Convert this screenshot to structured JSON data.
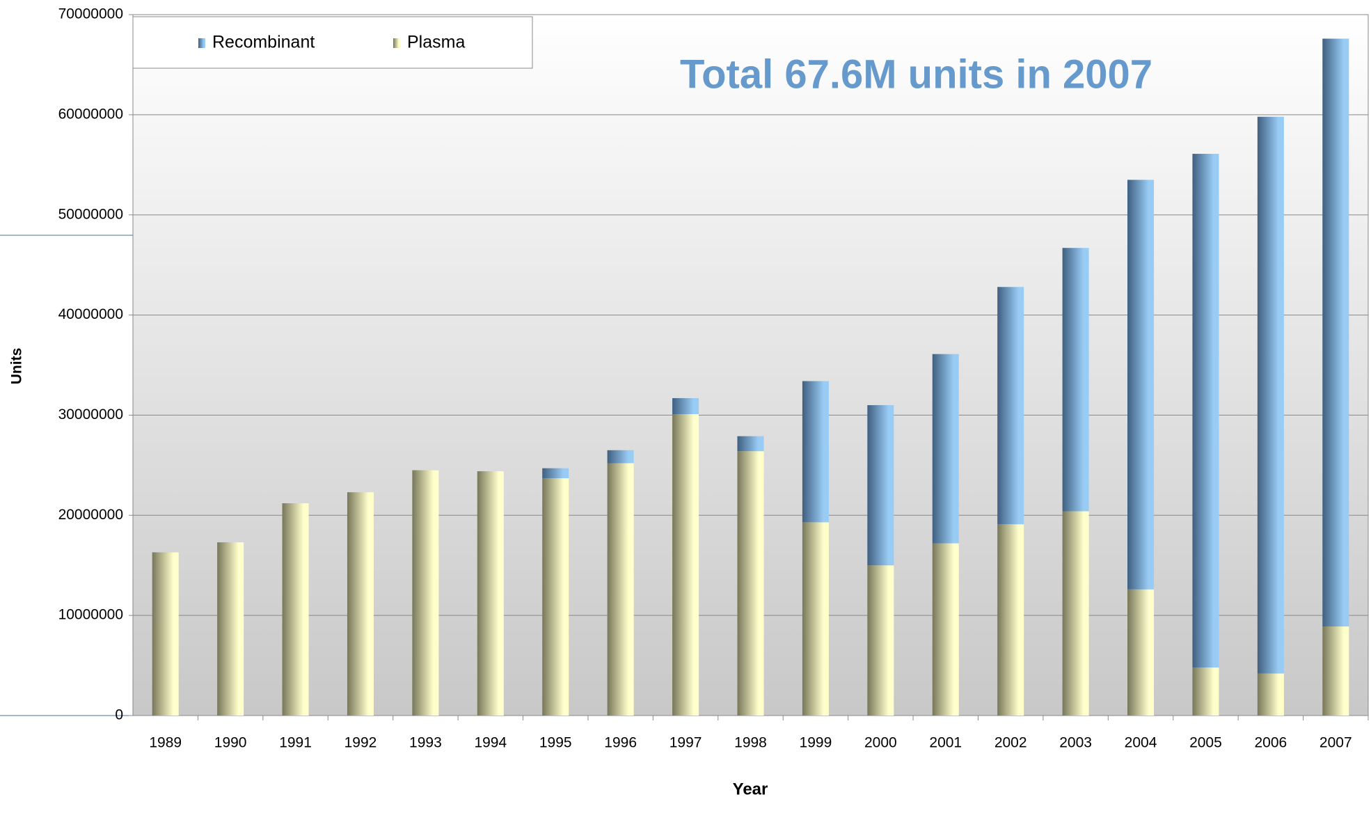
{
  "chart_data": {
    "type": "stacked_bar",
    "annotation": "Total 67.6M units in 2007",
    "x_label": "Year",
    "y_label": "Units",
    "categories": [
      "1989",
      "1990",
      "1991",
      "1992",
      "1993",
      "1994",
      "1995",
      "1996",
      "1997",
      "1998",
      "1999",
      "2000",
      "2001",
      "2002",
      "2003",
      "2004",
      "2005",
      "2006",
      "2007"
    ],
    "series": [
      {
        "name": "Plasma",
        "color": "#ffffcc",
        "values": [
          16300000,
          17300000,
          21200000,
          22300000,
          24500000,
          24400000,
          23700000,
          25200000,
          30100000,
          26400000,
          19300000,
          15000000,
          17200000,
          19100000,
          20400000,
          12600000,
          4800000,
          4200000,
          8900000
        ]
      },
      {
        "name": "Recombinant",
        "color": "#99ccf5",
        "values": [
          0,
          0,
          0,
          0,
          0,
          0,
          1000000,
          1300000,
          1600000,
          1500000,
          14100000,
          16000000,
          18900000,
          23700000,
          26300000,
          40900000,
          51300000,
          55600000,
          58700000
        ]
      }
    ],
    "legend_order": [
      1,
      0
    ],
    "ylim": [
      0,
      70000000
    ],
    "yticks": [
      0,
      10000000,
      20000000,
      30000000,
      40000000,
      50000000,
      60000000,
      70000000
    ],
    "grid": true,
    "legend": "upper left"
  }
}
